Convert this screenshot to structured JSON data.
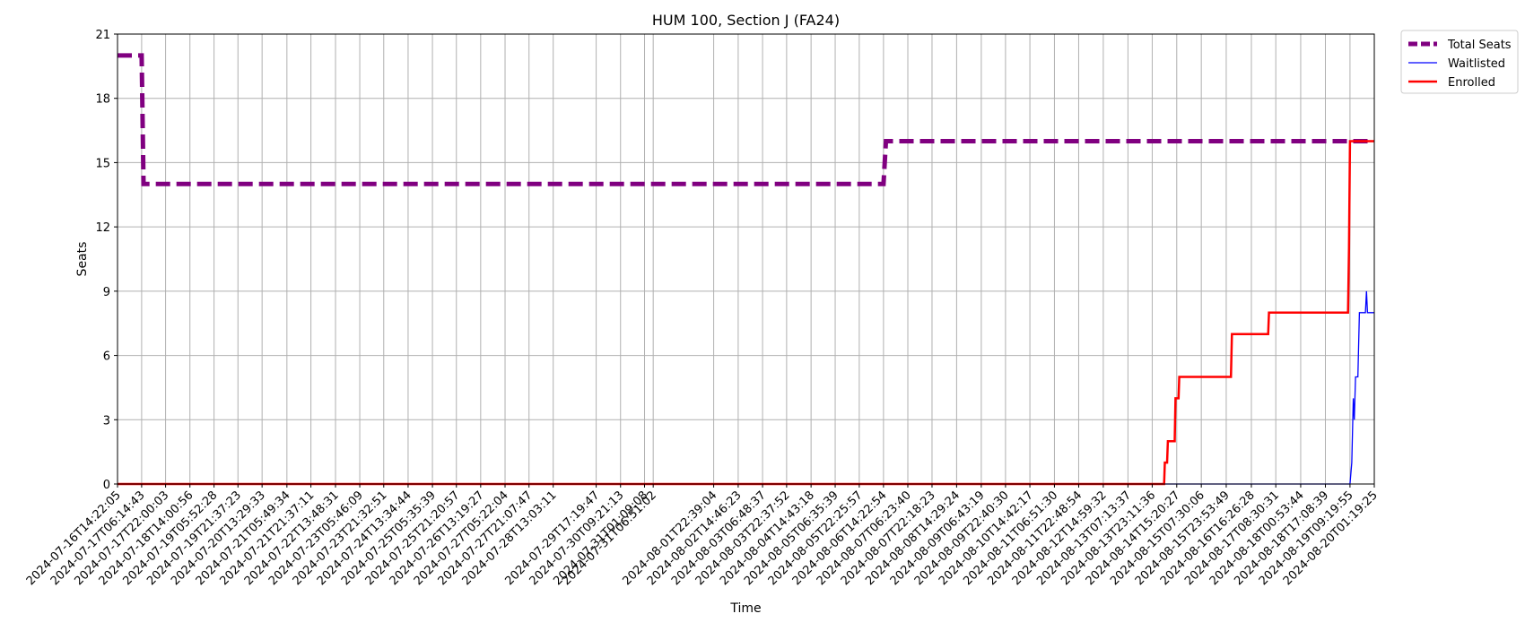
{
  "chart_data": {
    "type": "line",
    "title": "HUM 100, Section J (FA24)",
    "xlabel": "Time",
    "ylabel": "Seats",
    "xlim": [
      "2024-07-16T14:22:05",
      "2024-08-20T01:19:25"
    ],
    "ylim": [
      0,
      21
    ],
    "grid": true,
    "legend_position": "outside-top-right",
    "x_ticks": [
      "2024-07-16T14:22:05",
      "2024-07-17T06:14:43",
      "2024-07-17T22:00:03",
      "2024-07-18T14:00:56",
      "2024-07-19T05:52:28",
      "2024-07-19T21:37:23",
      "2024-07-20T13:29:33",
      "2024-07-21T05:49:34",
      "2024-07-21T21:37:11",
      "2024-07-22T13:48:31",
      "2024-07-23T05:46:09",
      "2024-07-23T21:32:51",
      "2024-07-24T13:34:44",
      "2024-07-25T05:35:39",
      "2024-07-25T21:20:57",
      "2024-07-26T13:19:27",
      "2024-07-27T05:22:04",
      "2024-07-27T21:07:47",
      "2024-07-28T13:03:11",
      "2024-07-29T17:19:47",
      "2024-07-30T09:21:13",
      "2024-07-31T01:09:08",
      "2024-07-31T06:51:02",
      "2024-08-01T22:39:04",
      "2024-08-02T14:46:23",
      "2024-08-03T06:48:37",
      "2024-08-03T22:37:52",
      "2024-08-04T14:43:18",
      "2024-08-05T06:35:39",
      "2024-08-05T22:25:57",
      "2024-08-06T14:22:54",
      "2024-08-07T06:23:40",
      "2024-08-07T22:18:23",
      "2024-08-08T14:29:24",
      "2024-08-09T06:43:19",
      "2024-08-09T22:40:30",
      "2024-08-10T14:42:17",
      "2024-08-11T06:51:30",
      "2024-08-11T22:48:54",
      "2024-08-12T14:59:32",
      "2024-08-13T07:13:37",
      "2024-08-13T23:11:36",
      "2024-08-14T15:20:27",
      "2024-08-15T07:30:06",
      "2024-08-15T23:53:49",
      "2024-08-16T16:26:28",
      "2024-08-17T08:30:31",
      "2024-08-18T00:53:44",
      "2024-08-18T17:08:39",
      "2024-08-19T09:19:55",
      "2024-08-20T01:19:25"
    ],
    "y_ticks": [
      0,
      3,
      6,
      9,
      12,
      15,
      18,
      21
    ],
    "series": [
      {
        "name": "Total Seats",
        "color": "#800080",
        "style": "dashed-thick",
        "points": [
          [
            "2024-07-16T14:22:05",
            20
          ],
          [
            "2024-07-17T06:14:43",
            20
          ],
          [
            "2024-07-17T07:30:00",
            14
          ],
          [
            "2024-08-06T14:22:54",
            14
          ],
          [
            "2024-08-06T16:00:00",
            16
          ],
          [
            "2024-08-20T01:19:25",
            16
          ]
        ]
      },
      {
        "name": "Waitlisted",
        "color": "#0000ff",
        "style": "solid-thin",
        "points": [
          [
            "2024-07-16T14:22:05",
            0
          ],
          [
            "2024-08-19T09:19:55",
            0
          ],
          [
            "2024-08-19T10:30:00",
            1
          ],
          [
            "2024-08-19T11:30:00",
            4
          ],
          [
            "2024-08-19T12:10:00",
            3
          ],
          [
            "2024-08-19T13:00:00",
            5
          ],
          [
            "2024-08-19T14:30:00",
            5
          ],
          [
            "2024-08-19T15:30:00",
            8
          ],
          [
            "2024-08-19T19:30:00",
            8
          ],
          [
            "2024-08-19T20:10:00",
            9
          ],
          [
            "2024-08-19T20:50:00",
            8
          ],
          [
            "2024-08-20T01:19:25",
            8
          ]
        ]
      },
      {
        "name": "Enrolled",
        "color": "#ff0000",
        "style": "solid",
        "points": [
          [
            "2024-07-16T14:22:05",
            0
          ],
          [
            "2024-08-14T07:00:00",
            0
          ],
          [
            "2024-08-14T07:30:00",
            1
          ],
          [
            "2024-08-14T09:00:00",
            1
          ],
          [
            "2024-08-14T09:30:00",
            2
          ],
          [
            "2024-08-14T14:00:00",
            2
          ],
          [
            "2024-08-14T14:30:00",
            4
          ],
          [
            "2024-08-14T16:30:00",
            4
          ],
          [
            "2024-08-14T17:00:00",
            5
          ],
          [
            "2024-08-16T03:00:00",
            5
          ],
          [
            "2024-08-16T03:40:00",
            7
          ],
          [
            "2024-08-17T03:30:00",
            7
          ],
          [
            "2024-08-17T04:00:00",
            8
          ],
          [
            "2024-08-19T08:00:00",
            8
          ],
          [
            "2024-08-19T08:40:00",
            11
          ],
          [
            "2024-08-19T09:19:55",
            16
          ],
          [
            "2024-08-20T01:19:25",
            16
          ]
        ]
      }
    ]
  }
}
